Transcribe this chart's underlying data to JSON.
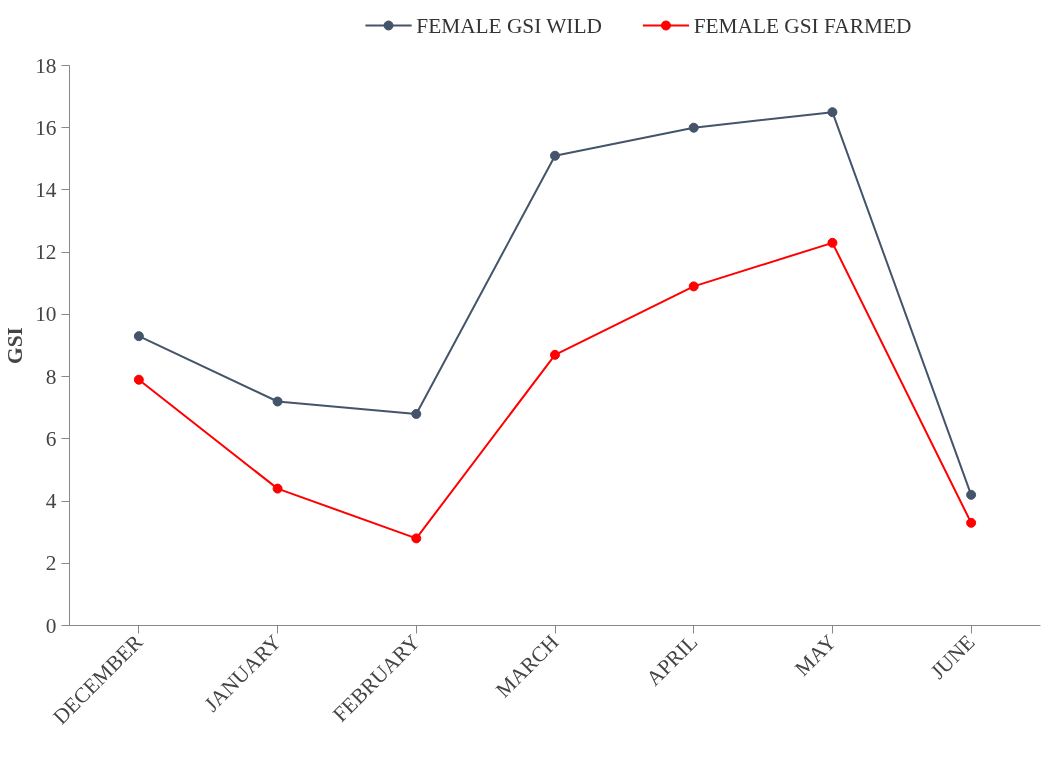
{
  "chart_data": {
    "type": "line",
    "ylabel": "GSI",
    "categories": [
      "DECEMBER",
      "JANUARY",
      "FEBRUARY",
      "MARCH",
      "APRIL",
      "MAY",
      "JUNE"
    ],
    "series": [
      {
        "name": "FEMALE GSI WILD",
        "color": "#44546a",
        "values": [
          9.3,
          7.2,
          6.8,
          15.1,
          16.0,
          16.5,
          4.2
        ]
      },
      {
        "name": "FEMALE GSI FARMED",
        "color": "#ff0000",
        "values": [
          7.9,
          4.4,
          2.8,
          8.7,
          10.9,
          12.3,
          3.3
        ]
      }
    ],
    "ylim": [
      0,
      18
    ],
    "yticks": [
      0,
      2,
      4,
      6,
      8,
      10,
      12,
      14,
      16,
      18
    ],
    "grid": false,
    "legend": "top",
    "marker": "circle",
    "line_style": "solid"
  }
}
